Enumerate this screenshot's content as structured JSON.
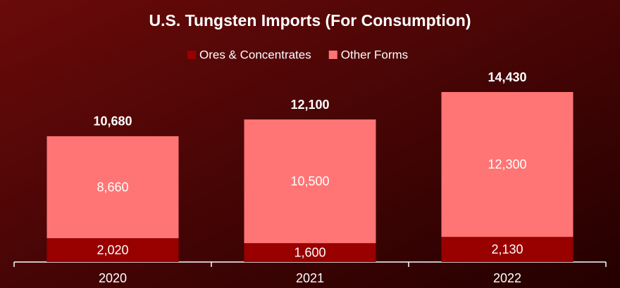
{
  "chart_data": {
    "type": "stacked-bar",
    "title": "U.S. Tungsten Imports (For Consumption)",
    "categories": [
      "2020",
      "2021",
      "2022"
    ],
    "series": [
      {
        "name": "Ores & Concentrates",
        "color": "#990000",
        "values": [
          2020,
          1600,
          2130
        ],
        "value_labels": [
          "2,020",
          "1,600",
          "2,130"
        ]
      },
      {
        "name": "Other Forms",
        "color": "#ff7575",
        "values": [
          8660,
          10500,
          12300
        ],
        "value_labels": [
          "8,660",
          "10,500",
          "12,300"
        ]
      }
    ],
    "totals": [
      10680,
      12100,
      14430
    ],
    "total_labels": [
      "10,680",
      "12,100",
      "14,430"
    ],
    "legend": "top"
  }
}
